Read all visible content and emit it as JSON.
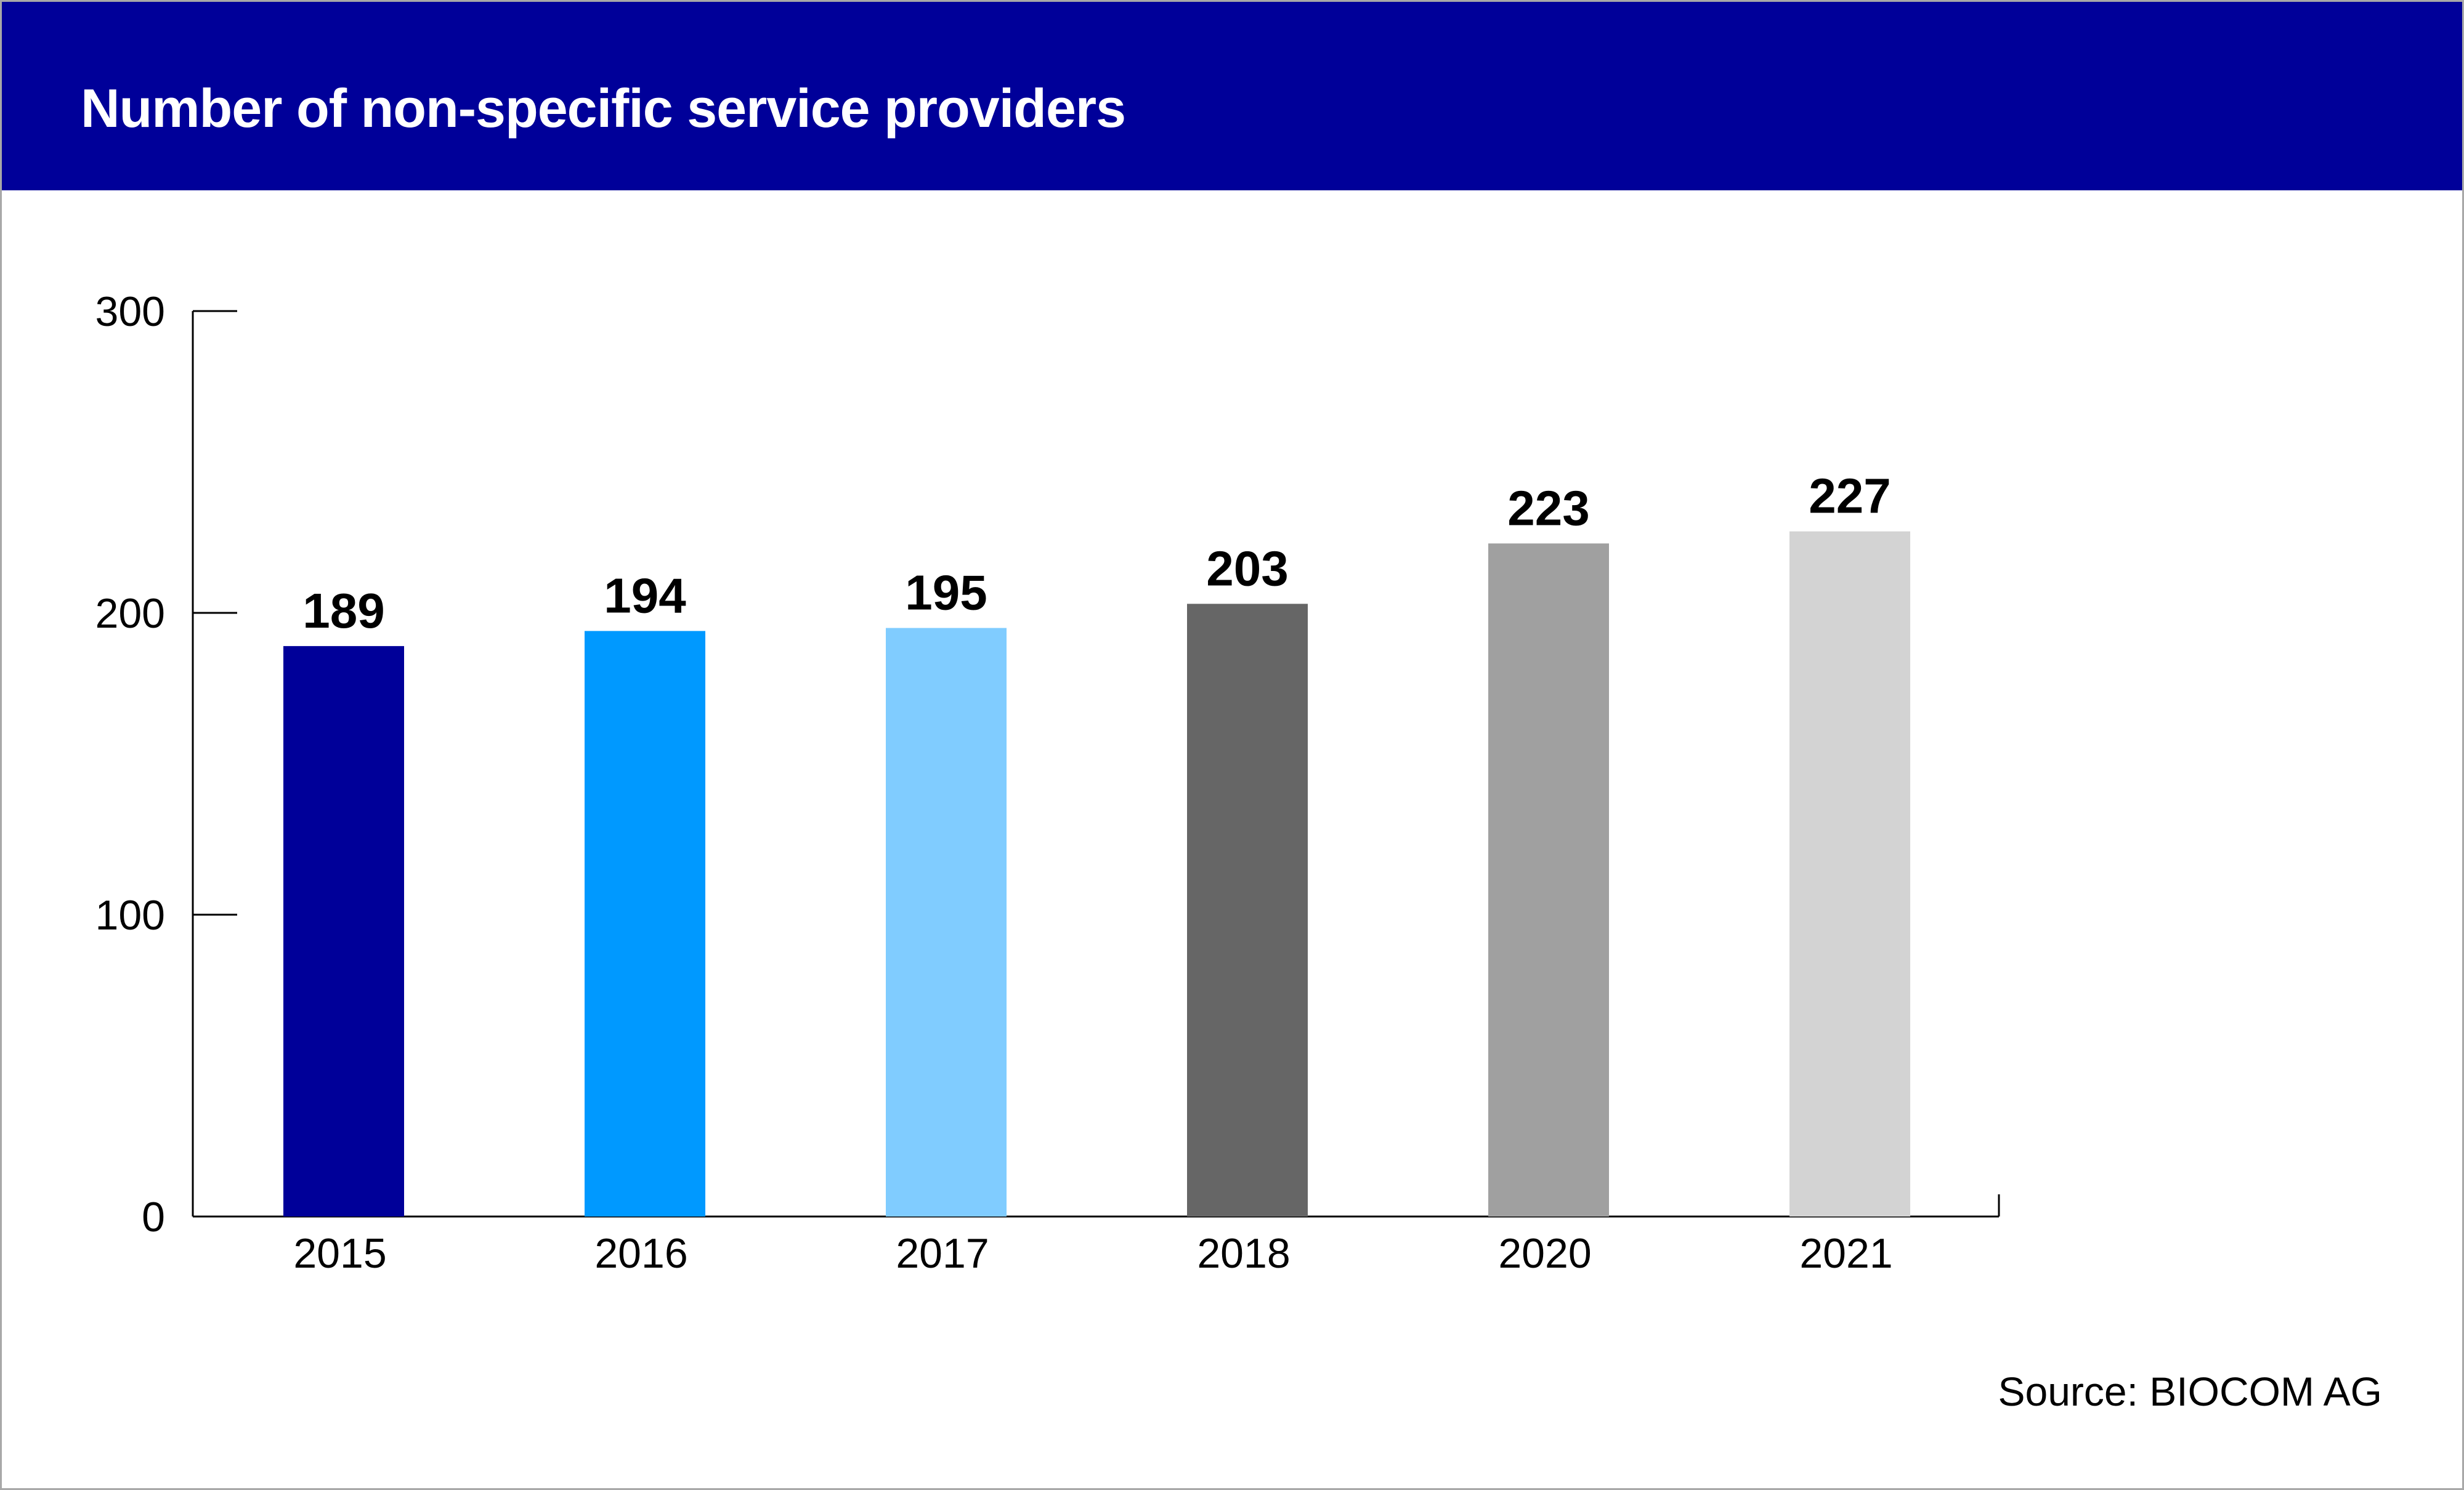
{
  "header": {
    "title": "Number of non-specific service providers"
  },
  "source": "Source: BIOCOM AG",
  "colors": {
    "header_background": "#000099",
    "axis": "#000000"
  },
  "chart_data": {
    "type": "bar",
    "title": "Number of non-specific service providers",
    "categories": [
      "2015",
      "2016",
      "2017",
      "2018",
      "2020",
      "2021"
    ],
    "values": [
      189,
      194,
      195,
      203,
      223,
      227
    ],
    "bar_colors": [
      "#000099",
      "#0099ff",
      "#80ccff",
      "#666666",
      "#a0a0a0",
      "#d3d3d3"
    ],
    "data_labels": [
      "189",
      "194",
      "195",
      "203",
      "223",
      "227"
    ],
    "ylim": [
      0,
      300
    ],
    "yticks": [
      0,
      100,
      200,
      300
    ],
    "ytick_labels": [
      "0",
      "100",
      "200",
      "300"
    ],
    "xlabel": "",
    "ylabel": "",
    "grid": false,
    "legend": "none"
  }
}
